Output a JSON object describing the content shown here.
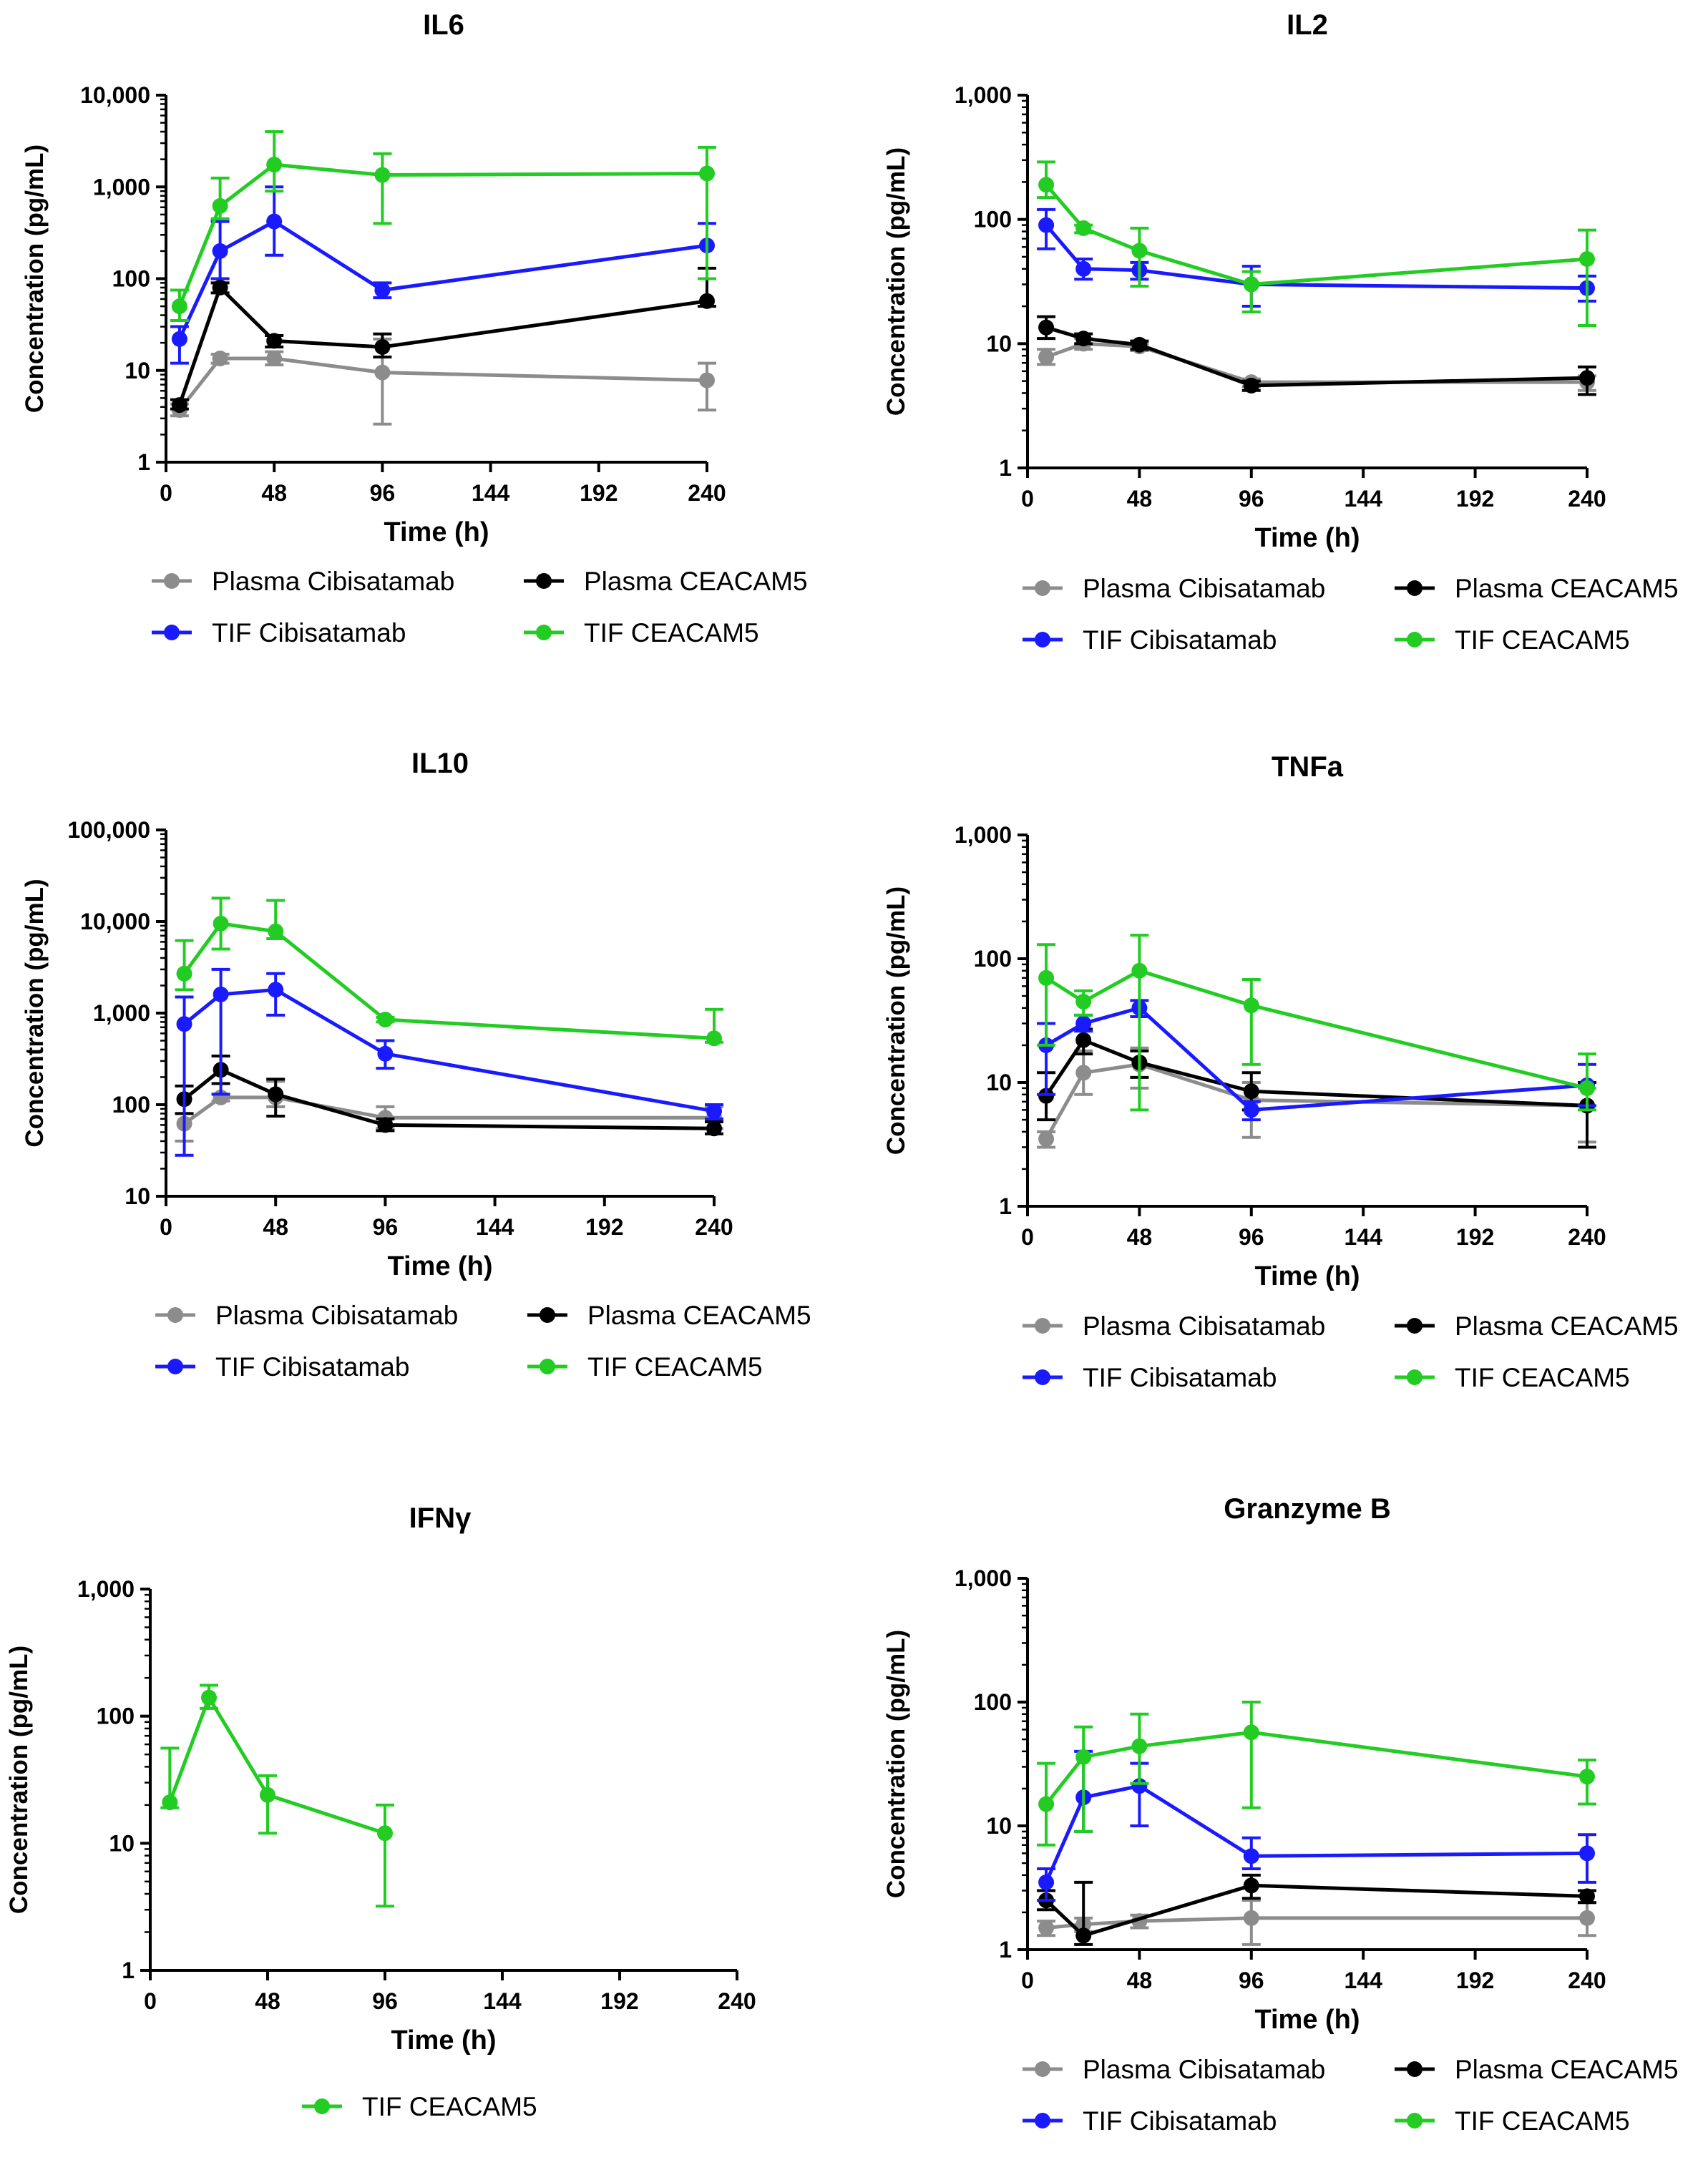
{
  "chart_data": [
    {
      "type": "line",
      "title": "IL6",
      "xlabel": "Time (h)",
      "ylabel": "Concentration (pg/mL)",
      "yscale": "log",
      "xlim": [
        0,
        240
      ],
      "ylim": [
        1,
        10000
      ],
      "xticks": [
        0,
        48,
        96,
        144,
        192,
        240
      ],
      "xtick_labels": [
        "0",
        "48",
        "96",
        "144",
        "192",
        "240"
      ],
      "yticks": [
        1,
        10,
        100,
        1000,
        10000
      ],
      "ytick_labels": [
        "1",
        "10",
        "100",
        "1,000",
        "10,000"
      ],
      "series": [
        {
          "name": "Plasma Cibisatamab",
          "color": "#8c8c8c",
          "x": [
            6,
            24,
            48,
            96,
            240
          ],
          "y": [
            3.7,
            13.5,
            13.5,
            9.5,
            7.8
          ],
          "err_hi": [
            4.3,
            15,
            16,
            22,
            12
          ],
          "err_lo": [
            3.2,
            12,
            11.5,
            2.6,
            3.7
          ]
        },
        {
          "name": "Plasma CEACAM5",
          "color": "#000000",
          "x": [
            6,
            24,
            48,
            96,
            240
          ],
          "y": [
            4.2,
            80,
            21,
            18,
            57
          ],
          "err_hi": [
            4.8,
            90,
            24,
            25,
            130
          ],
          "err_lo": [
            3.8,
            70,
            18,
            14,
            50
          ]
        },
        {
          "name": "TIF Cibisatamab",
          "color": "#1a1aff",
          "x": [
            6,
            24,
            48,
            96,
            240
          ],
          "y": [
            22,
            200,
            420,
            75,
            230
          ],
          "err_hi": [
            30,
            420,
            1000,
            90,
            400
          ],
          "err_lo": [
            12,
            100,
            180,
            62,
            100
          ]
        },
        {
          "name": "TIF CEACAM5",
          "color": "#22cc22",
          "x": [
            6,
            24,
            48,
            96,
            240
          ],
          "y": [
            50,
            620,
            1750,
            1350,
            1400
          ],
          "err_hi": [
            75,
            1250,
            4000,
            2300,
            2700
          ],
          "err_lo": [
            35,
            450,
            900,
            400,
            100
          ]
        }
      ],
      "legend": {
        "columns": 2,
        "order": [
          "Plasma Cibisatamab",
          "Plasma CEACAM5",
          "TIF Cibisatamab",
          "TIF CEACAM5"
        ],
        "placement": "bottom"
      }
    },
    {
      "type": "line",
      "title": "IL2",
      "xlabel": "Time (h)",
      "ylabel": "Concentration (pg/mL)",
      "yscale": "log",
      "xlim": [
        0,
        240
      ],
      "ylim": [
        1,
        1000
      ],
      "xticks": [
        0,
        48,
        96,
        144,
        192,
        240
      ],
      "xtick_labels": [
        "0",
        "48",
        "96",
        "144",
        "192",
        "240"
      ],
      "yticks": [
        1,
        10,
        100,
        1000
      ],
      "ytick_labels": [
        "1",
        "10",
        "100",
        "1,000"
      ],
      "series": [
        {
          "name": "Plasma Cibisatamab",
          "color": "#8c8c8c",
          "x": [
            8,
            24,
            48,
            96,
            240
          ],
          "y": [
            7.8,
            10,
            9.5,
            4.9,
            4.9
          ],
          "err_hi": [
            9,
            11,
            10,
            5.2,
            5.5
          ],
          "err_lo": [
            6.8,
            9,
            8.8,
            4.5,
            4.2
          ]
        },
        {
          "name": "Plasma CEACAM5",
          "color": "#000000",
          "x": [
            8,
            24,
            48,
            96,
            240
          ],
          "y": [
            13.5,
            11,
            9.8,
            4.6,
            5.3
          ],
          "err_hi": [
            16.5,
            12,
            10.5,
            5,
            6.5
          ],
          "err_lo": [
            11,
            10,
            9,
            4.2,
            3.9
          ]
        },
        {
          "name": "TIF Cibisatamab",
          "color": "#1a1aff",
          "x": [
            8,
            24,
            48,
            96,
            240
          ],
          "y": [
            90,
            40,
            39,
            30,
            28
          ],
          "err_hi": [
            120,
            48,
            45,
            42,
            35
          ],
          "err_lo": [
            58,
            33,
            33,
            20,
            22
          ]
        },
        {
          "name": "TIF CEACAM5",
          "color": "#22cc22",
          "x": [
            8,
            24,
            48,
            96,
            240
          ],
          "y": [
            190,
            85,
            56,
            30,
            48
          ],
          "err_hi": [
            290,
            90,
            85,
            38,
            82
          ],
          "err_lo": [
            150,
            78,
            29,
            18,
            14
          ]
        }
      ],
      "legend": {
        "columns": 2,
        "order": [
          "Plasma Cibisatamab",
          "Plasma CEACAM5",
          "TIF Cibisatamab",
          "TIF CEACAM5"
        ],
        "placement": "bottom"
      }
    },
    {
      "type": "line",
      "title": "IL10",
      "xlabel": "Time (h)",
      "ylabel": "Concentration (pg/mL)",
      "yscale": "log",
      "xlim": [
        0,
        240
      ],
      "ylim": [
        10,
        100000
      ],
      "xticks": [
        0,
        48,
        96,
        144,
        192,
        240
      ],
      "xtick_labels": [
        "0",
        "48",
        "96",
        "144",
        "192",
        "240"
      ],
      "yticks": [
        10,
        100,
        1000,
        10000,
        100000
      ],
      "ytick_labels": [
        "10",
        "100",
        "1,000",
        "10,000",
        "100,000"
      ],
      "series": [
        {
          "name": "Plasma Cibisatamab",
          "color": "#8c8c8c",
          "x": [
            8,
            24,
            48,
            96,
            240
          ],
          "y": [
            62,
            120,
            120,
            72,
            72
          ],
          "err_hi": [
            80,
            130,
            180,
            95,
            95
          ],
          "err_lo": [
            40,
            110,
            95,
            55,
            55
          ]
        },
        {
          "name": "Plasma CEACAM5",
          "color": "#000000",
          "x": [
            8,
            24,
            48,
            96,
            240
          ],
          "y": [
            115,
            240,
            130,
            60,
            55
          ],
          "err_hi": [
            160,
            340,
            190,
            70,
            65
          ],
          "err_lo": [
            80,
            170,
            75,
            52,
            48
          ]
        },
        {
          "name": "TIF Cibisatamab",
          "color": "#1a1aff",
          "x": [
            8,
            24,
            48,
            96,
            240
          ],
          "y": [
            760,
            1600,
            1800,
            360,
            85
          ],
          "err_hi": [
            1500,
            3000,
            2700,
            500,
            100
          ],
          "err_lo": [
            28,
            130,
            950,
            250,
            70
          ]
        },
        {
          "name": "TIF CEACAM5",
          "color": "#22cc22",
          "x": [
            8,
            24,
            48,
            96,
            240
          ],
          "y": [
            2700,
            9500,
            7800,
            850,
            530
          ],
          "err_hi": [
            6200,
            18000,
            17000,
            900,
            1100
          ],
          "err_lo": [
            1800,
            5000,
            6500,
            800,
            480
          ]
        }
      ],
      "legend": {
        "columns": 2,
        "order": [
          "Plasma Cibisatamab",
          "Plasma CEACAM5",
          "TIF Cibisatamab",
          "TIF CEACAM5"
        ],
        "placement": "bottom"
      }
    },
    {
      "type": "line",
      "title": "TNFa",
      "xlabel": "Time (h)",
      "ylabel": "Concentration (pg/mL)",
      "yscale": "log",
      "xlim": [
        0,
        240
      ],
      "ylim": [
        1,
        1000
      ],
      "xticks": [
        0,
        48,
        96,
        144,
        192,
        240
      ],
      "xtick_labels": [
        "0",
        "48",
        "96",
        "144",
        "192",
        "240"
      ],
      "yticks": [
        1,
        10,
        100,
        1000
      ],
      "ytick_labels": [
        "1",
        "10",
        "100",
        "1,000"
      ],
      "series": [
        {
          "name": "Plasma Cibisatamab",
          "color": "#8c8c8c",
          "x": [
            8,
            24,
            48,
            96,
            240
          ],
          "y": [
            3.5,
            12,
            14,
            7.2,
            6.5
          ],
          "err_hi": [
            4,
            18,
            19,
            10,
            9
          ],
          "err_lo": [
            3,
            8,
            9,
            3.6,
            3.3
          ]
        },
        {
          "name": "Plasma CEACAM5",
          "color": "#000000",
          "x": [
            8,
            24,
            48,
            96,
            240
          ],
          "y": [
            7.8,
            22,
            14.5,
            8.5,
            6.5
          ],
          "err_hi": [
            12,
            27,
            18,
            12,
            10
          ],
          "err_lo": [
            5,
            17,
            11,
            6,
            3
          ]
        },
        {
          "name": "TIF Cibisatamab",
          "color": "#1a1aff",
          "x": [
            8,
            24,
            48,
            96,
            240
          ],
          "y": [
            20,
            30,
            40,
            6,
            9.5
          ],
          "err_hi": [
            30,
            35,
            46,
            7,
            14
          ],
          "err_lo": [
            8,
            26,
            34,
            5,
            6.5
          ]
        },
        {
          "name": "TIF CEACAM5",
          "color": "#22cc22",
          "x": [
            8,
            24,
            48,
            96,
            240
          ],
          "y": [
            70,
            45,
            80,
            42,
            9
          ],
          "err_hi": [
            130,
            55,
            155,
            68,
            17
          ],
          "err_lo": [
            20,
            35,
            6,
            14,
            6
          ]
        }
      ],
      "legend": {
        "columns": 2,
        "order": [
          "Plasma Cibisatamab",
          "Plasma CEACAM5",
          "TIF Cibisatamab",
          "TIF CEACAM5"
        ],
        "placement": "bottom"
      }
    },
    {
      "type": "line",
      "title": "IFNγ",
      "xlabel": "Time (h)",
      "ylabel": "Concentration (pg/mL)",
      "yscale": "log",
      "xlim": [
        0,
        240
      ],
      "ylim": [
        1,
        1000
      ],
      "xticks": [
        0,
        48,
        96,
        144,
        192,
        240
      ],
      "xtick_labels": [
        "0",
        "48",
        "96",
        "144",
        "192",
        "240"
      ],
      "yticks": [
        1,
        10,
        100,
        1000
      ],
      "ytick_labels": [
        "1",
        "10",
        "100",
        "1,000"
      ],
      "series": [
        {
          "name": "TIF CEACAM5",
          "color": "#22cc22",
          "x": [
            8,
            24,
            48,
            96
          ],
          "y": [
            21,
            140,
            24,
            12
          ],
          "err_hi": [
            56,
            175,
            34,
            20
          ],
          "err_lo": [
            19,
            115,
            12,
            3.2
          ]
        }
      ],
      "legend": {
        "columns": 1,
        "order": [
          "TIF CEACAM5"
        ],
        "placement": "bottom"
      }
    },
    {
      "type": "line",
      "title": "Granzyme B",
      "xlabel": "Time (h)",
      "ylabel": "Concentration (pg/mL)",
      "yscale": "log",
      "xlim": [
        0,
        240
      ],
      "ylim": [
        1,
        1000
      ],
      "xticks": [
        0,
        48,
        96,
        144,
        192,
        240
      ],
      "xtick_labels": [
        "0",
        "48",
        "96",
        "144",
        "192",
        "240"
      ],
      "yticks": [
        1,
        10,
        100,
        1000
      ],
      "ytick_labels": [
        "1",
        "10",
        "100",
        "1,000"
      ],
      "series": [
        {
          "name": "Plasma Cibisatamab",
          "color": "#8c8c8c",
          "x": [
            8,
            24,
            48,
            96,
            240
          ],
          "y": [
            1.5,
            1.6,
            1.7,
            1.8,
            1.8
          ],
          "err_hi": [
            1.7,
            1.8,
            1.9,
            2.5,
            2.4
          ],
          "err_lo": [
            1.3,
            1.4,
            1.5,
            1.1,
            1.3
          ]
        },
        {
          "name": "Plasma CEACAM5",
          "color": "#000000",
          "x": [
            8,
            24,
            96,
            240
          ],
          "y": [
            2.5,
            1.3,
            3.3,
            2.7
          ],
          "err_hi": [
            3,
            3.5,
            4,
            3
          ],
          "err_lo": [
            2.1,
            1.1,
            2.6,
            2.4
          ]
        },
        {
          "name": "TIF Cibisatamab",
          "color": "#1a1aff",
          "x": [
            8,
            24,
            48,
            96,
            240
          ],
          "y": [
            3.5,
            17,
            21,
            5.7,
            6
          ],
          "err_hi": [
            4.5,
            40,
            32,
            8,
            8.5
          ],
          "err_lo": [
            2.5,
            9,
            10,
            4.5,
            3.5
          ]
        },
        {
          "name": "TIF CEACAM5",
          "color": "#22cc22",
          "x": [
            8,
            24,
            48,
            96,
            240
          ],
          "y": [
            15,
            36,
            44,
            57,
            25
          ],
          "err_hi": [
            32,
            63,
            80,
            100,
            34
          ],
          "err_lo": [
            7,
            9,
            22,
            14,
            15
          ]
        }
      ],
      "legend": {
        "columns": 2,
        "order": [
          "Plasma Cibisatamab",
          "Plasma CEACAM5",
          "TIF Cibisatamab",
          "TIF CEACAM5"
        ],
        "placement": "bottom"
      }
    }
  ]
}
